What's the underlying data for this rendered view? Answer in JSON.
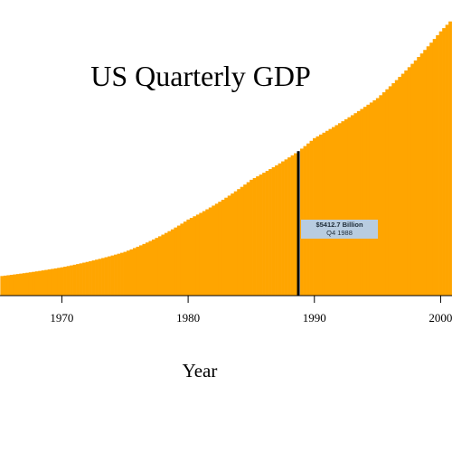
{
  "chart_data": {
    "type": "bar",
    "title": "US Quarterly GDP",
    "xlabel": "Year",
    "ylabel": "",
    "x_range_years": [
      1965.1,
      2000.9
    ],
    "ylim": [
      0,
      10500
    ],
    "xticks": [
      "1970",
      "1980",
      "1990",
      "2000"
    ],
    "bar_color": "#FFA500",
    "highlight_color": "#000000",
    "anchors": [
      {
        "year": 1965.0,
        "value": 720
      },
      {
        "year": 1970.0,
        "value": 1060
      },
      {
        "year": 1975.0,
        "value": 1640
      },
      {
        "year": 1980.0,
        "value": 2850
      },
      {
        "year": 1985.0,
        "value": 4340
      },
      {
        "year": 1988.75,
        "value": 5412.7
      },
      {
        "year": 1990.0,
        "value": 5900
      },
      {
        "year": 1995.0,
        "value": 7400
      },
      {
        "year": 2000.0,
        "value": 9900
      },
      {
        "year": 2001.0,
        "value": 10400
      }
    ],
    "highlight": {
      "year": 1988.75,
      "value": 5412.7
    },
    "tooltip": {
      "value_text": "$5412.7 Billion",
      "period_text": "Q4 1988",
      "color": "#B8CCE0"
    }
  }
}
